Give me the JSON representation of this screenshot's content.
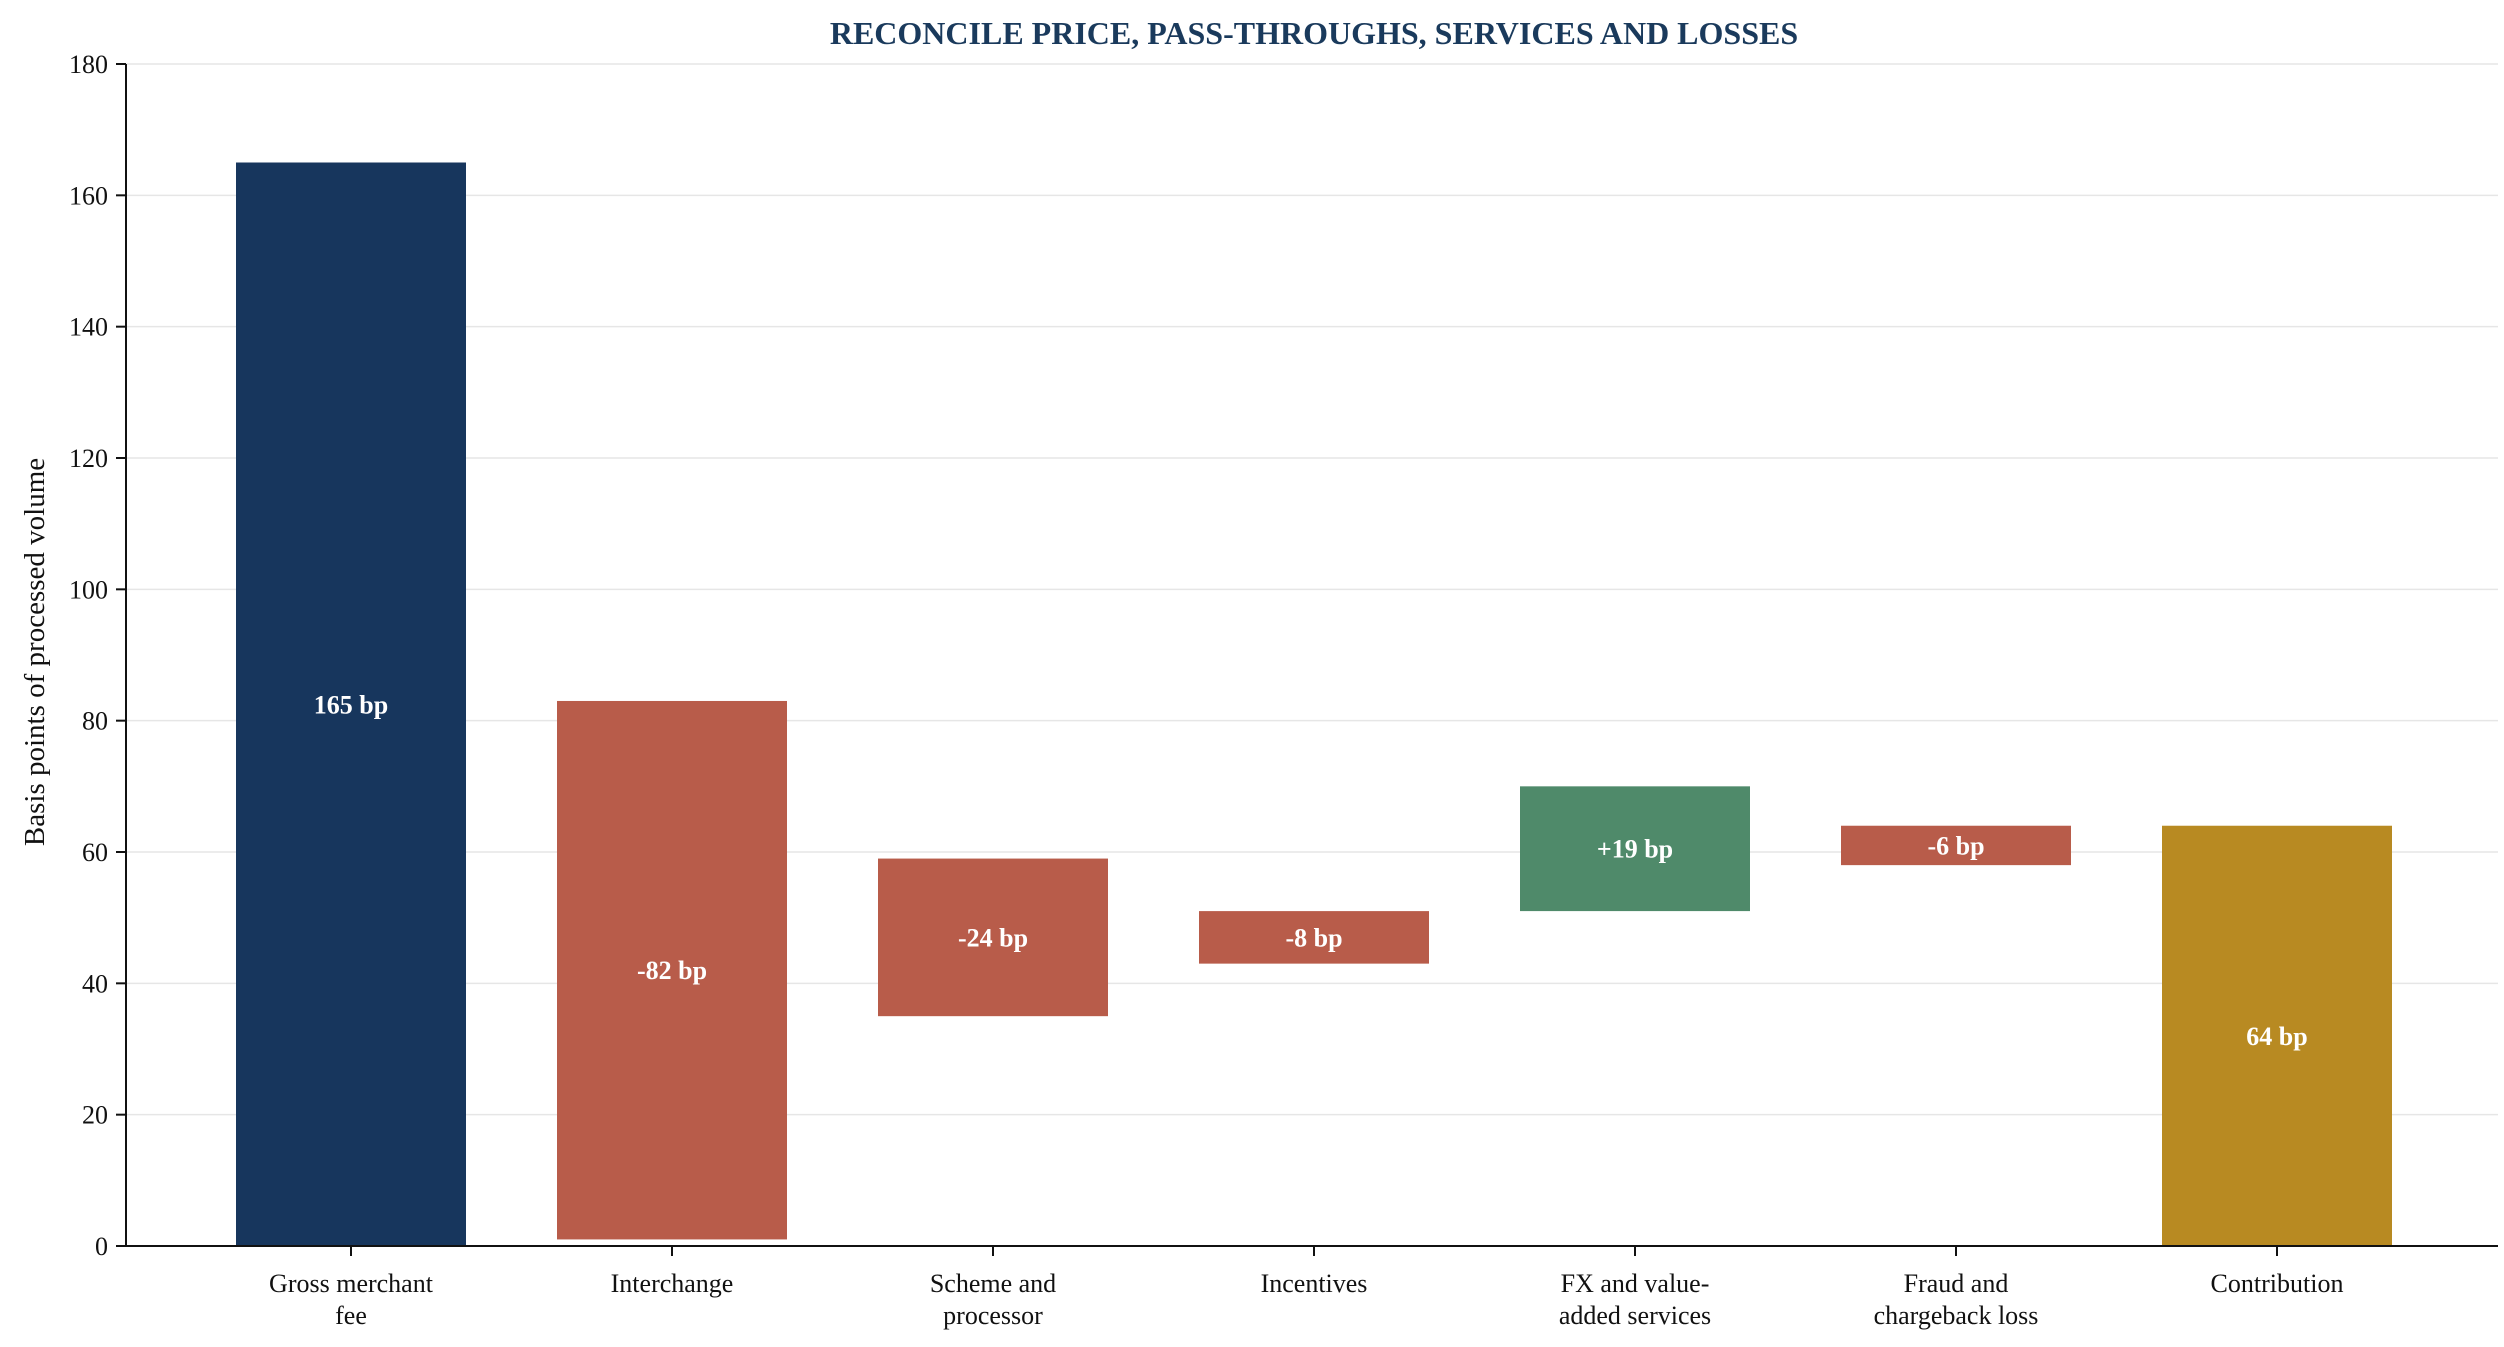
{
  "chart_data": {
    "type": "bar",
    "subtype": "waterfall",
    "title": "RECONCILE PRICE, PASS-THROUGHS, SERVICES AND LOSSES",
    "xlabel": "",
    "ylabel": "Basis points of processed volume",
    "ylim": [
      0,
      180
    ],
    "yticks": [
      0,
      20,
      40,
      60,
      80,
      100,
      120,
      140,
      160,
      180
    ],
    "grid": true,
    "legend": "none",
    "categories": [
      [
        "Gross merchant",
        "fee"
      ],
      [
        "Interchange"
      ],
      [
        "Scheme and",
        "processor"
      ],
      [
        "Incentives"
      ],
      [
        "FX and value-",
        "added services"
      ],
      [
        "Fraud and",
        "chargeback loss"
      ],
      [
        "Contribution"
      ]
    ],
    "bars": [
      {
        "start": 0,
        "end": 165,
        "kind": "total",
        "label": "165 bp"
      },
      {
        "start": 83,
        "end": 1,
        "kind": "decrease",
        "label": "-82 bp"
      },
      {
        "start": 59,
        "end": 35,
        "kind": "decrease",
        "label": "-24 bp"
      },
      {
        "start": 51,
        "end": 43,
        "kind": "decrease",
        "label": "-8 bp"
      },
      {
        "start": 51,
        "end": 70,
        "kind": "increase",
        "label": "+19 bp"
      },
      {
        "start": 64,
        "end": 58,
        "kind": "decrease",
        "label": "-6 bp"
      },
      {
        "start": 0,
        "end": 64,
        "kind": "result",
        "label": "64 bp"
      }
    ],
    "colors": {
      "total": "#17365d",
      "decrease": "#b85c4a",
      "increase": "#4f8a6a",
      "result": "#b88a22"
    }
  }
}
